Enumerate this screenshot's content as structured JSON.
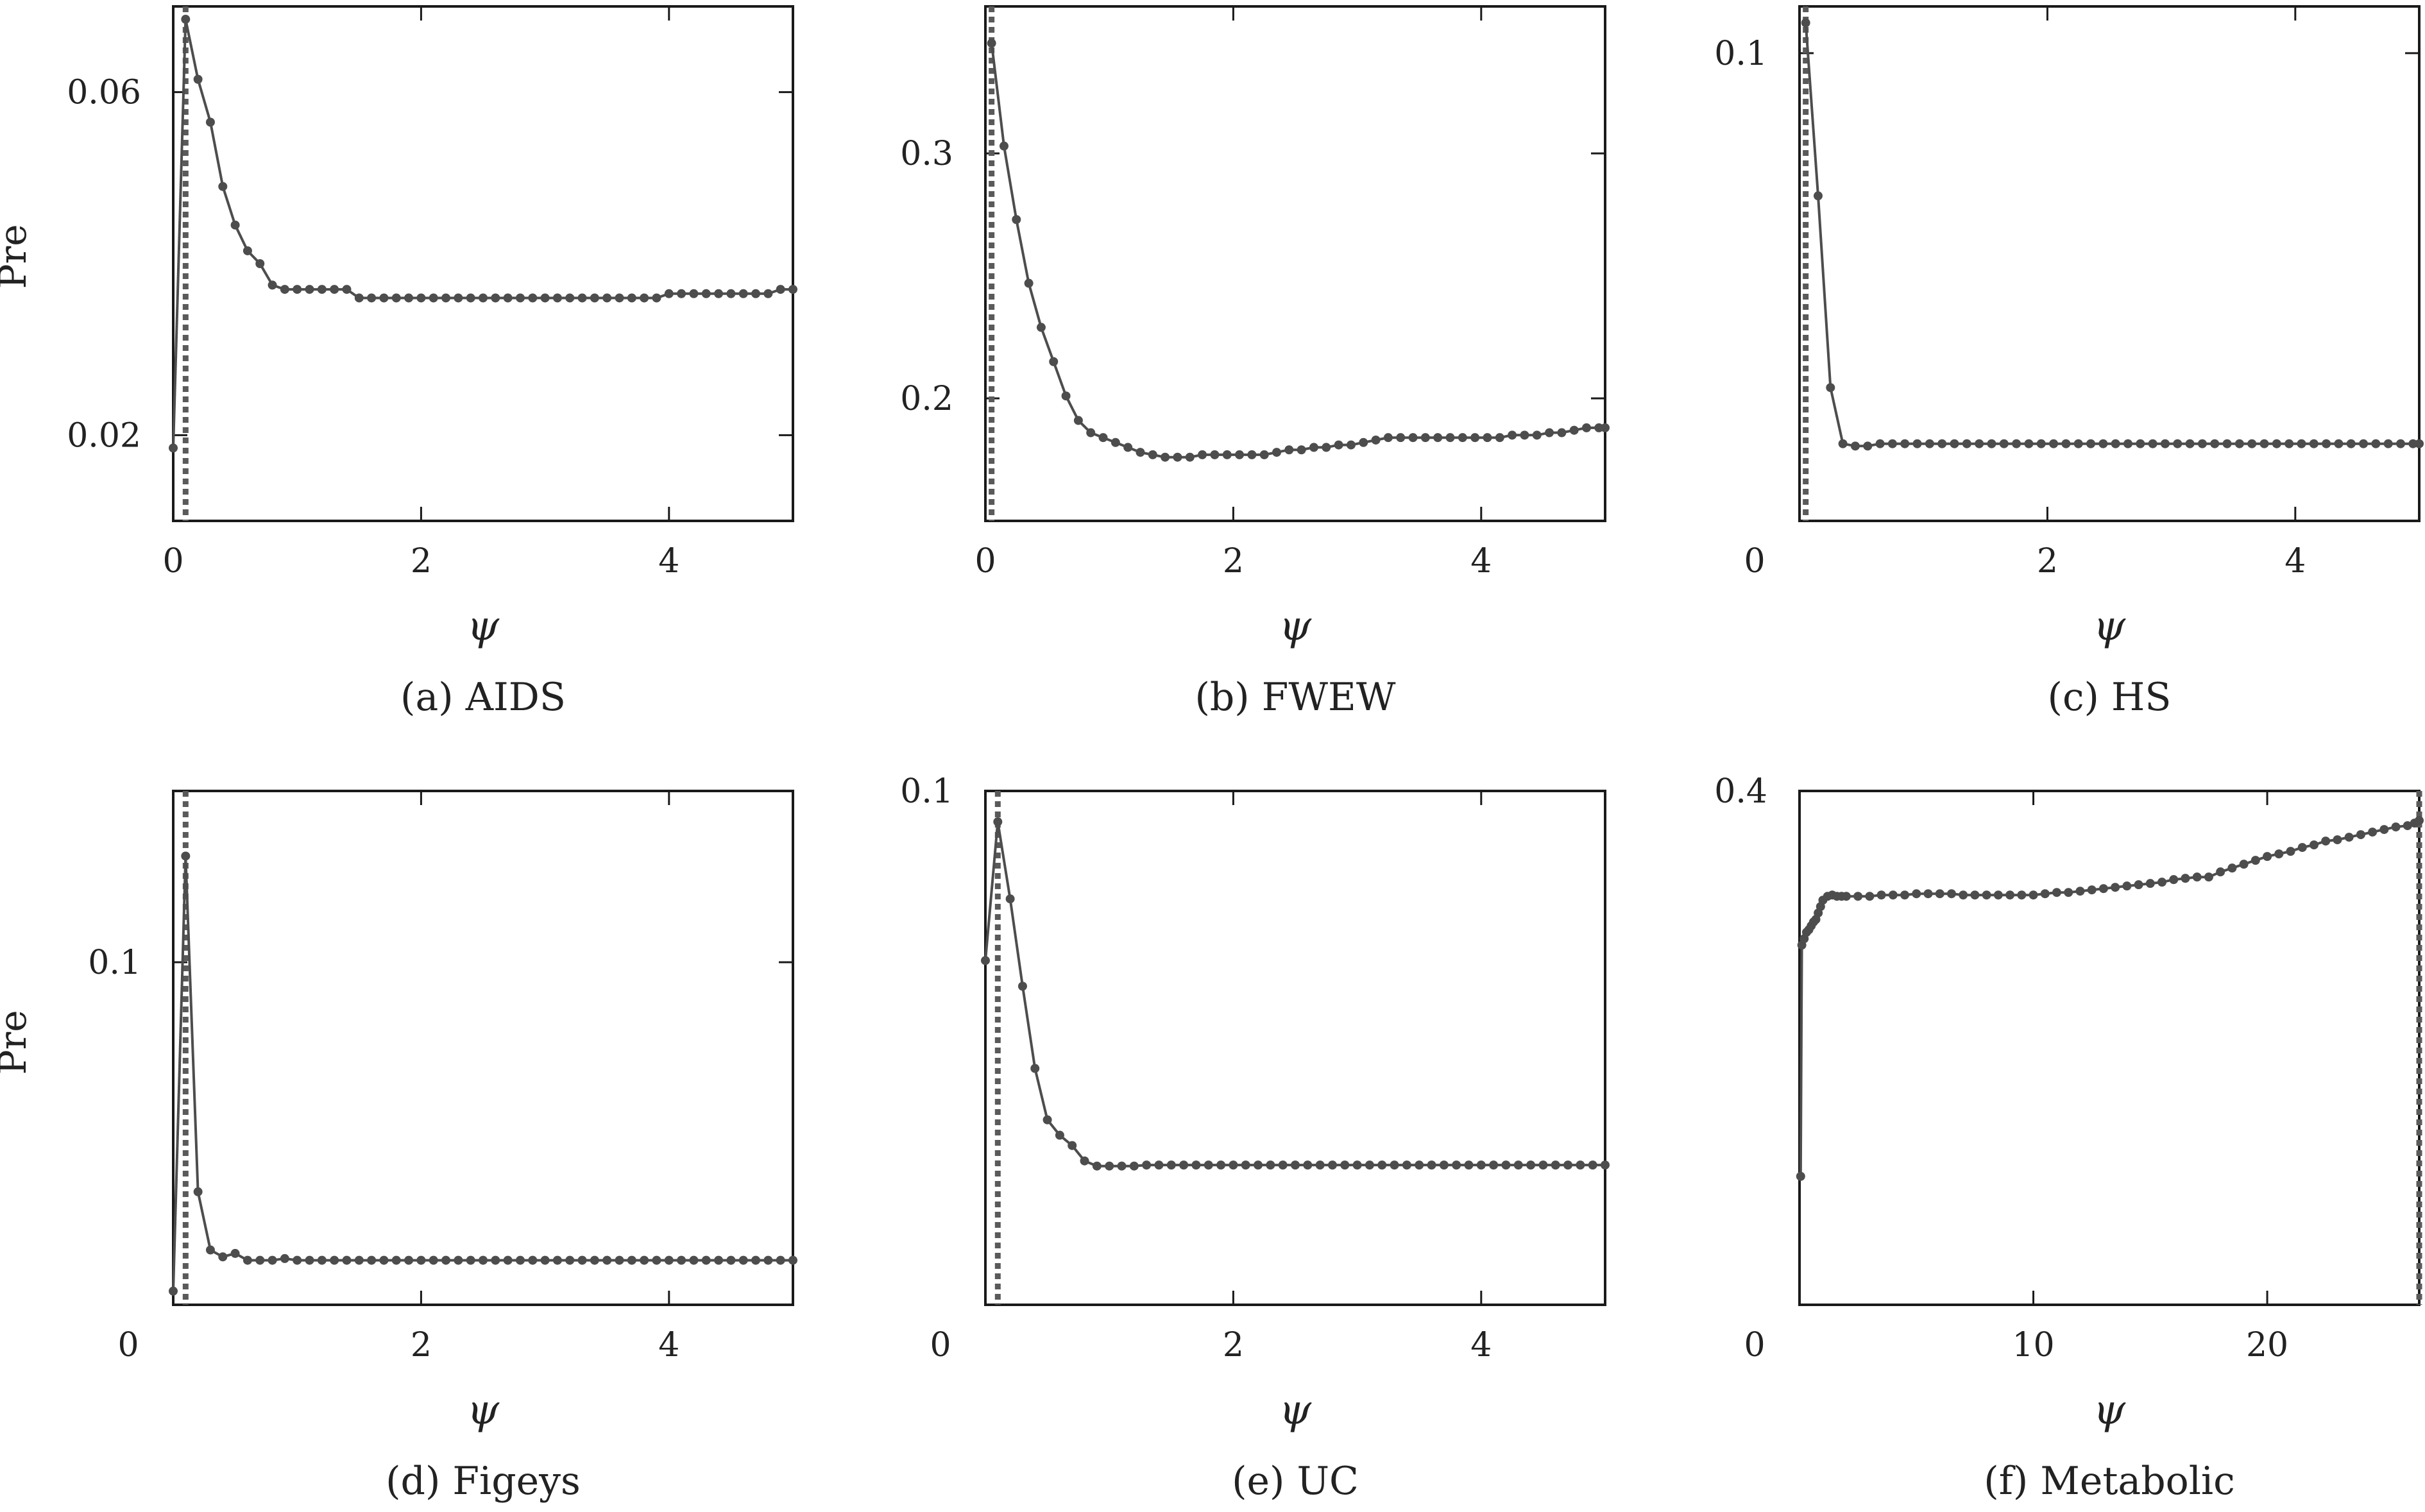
{
  "style": {
    "line_color": "#4d4d4d",
    "marker_color": "#4d4d4d",
    "dotted_line_color": "#5a5a5a",
    "frame_color": "#1a1a1a"
  },
  "chart_data": [
    {
      "type": "line",
      "caption": "(a) AIDS",
      "xlabel": "ψ",
      "ylabel": "Pre",
      "xlim": [
        0,
        5
      ],
      "ylim": [
        0.01,
        0.07
      ],
      "xticks": [
        0,
        2,
        4
      ],
      "xtick_labels": [
        "0",
        "2",
        "4"
      ],
      "yticks": [
        0.02,
        0.06
      ],
      "ytick_labels": [
        "0.02",
        "0.06"
      ],
      "vline_x": 0.1,
      "series": [
        {
          "x": [
            0,
            0.1,
            0.2,
            0.3,
            0.4,
            0.5,
            0.6,
            0.7,
            0.8,
            0.9,
            1.0,
            1.1,
            1.2,
            1.3,
            1.4,
            1.5,
            1.6,
            1.7,
            1.8,
            1.9,
            2.0,
            2.1,
            2.2,
            2.3,
            2.4,
            2.5,
            2.6,
            2.7,
            2.8,
            2.9,
            3.0,
            3.1,
            3.2,
            3.3,
            3.4,
            3.5,
            3.6,
            3.7,
            3.8,
            3.9,
            4.0,
            4.1,
            4.2,
            4.3,
            4.4,
            4.5,
            4.6,
            4.7,
            4.8,
            4.9,
            5.0
          ],
          "y": [
            0.0185,
            0.0685,
            0.0615,
            0.0565,
            0.049,
            0.0445,
            0.0415,
            0.04,
            0.0375,
            0.037,
            0.037,
            0.037,
            0.037,
            0.037,
            0.037,
            0.036,
            0.036,
            0.036,
            0.036,
            0.036,
            0.036,
            0.036,
            0.036,
            0.036,
            0.036,
            0.036,
            0.036,
            0.036,
            0.036,
            0.036,
            0.036,
            0.036,
            0.036,
            0.036,
            0.036,
            0.036,
            0.036,
            0.036,
            0.036,
            0.036,
            0.0365,
            0.0365,
            0.0365,
            0.0365,
            0.0365,
            0.0365,
            0.0365,
            0.0365,
            0.0365,
            0.037,
            0.037
          ]
        }
      ]
    },
    {
      "type": "line",
      "caption": "(b) FWEW",
      "xlabel": "ψ",
      "ylabel": "",
      "xlim": [
        0,
        5
      ],
      "ylim": [
        0.15,
        0.36
      ],
      "xticks": [
        0,
        2,
        4
      ],
      "xtick_labels": [
        "0",
        "2",
        "4"
      ],
      "yticks": [
        0.2,
        0.3
      ],
      "ytick_labels": [
        "0.2",
        "0.3"
      ],
      "vline_x": 0.05,
      "series": [
        {
          "x": [
            0.05,
            0.15,
            0.25,
            0.35,
            0.45,
            0.55,
            0.65,
            0.75,
            0.85,
            0.95,
            1.05,
            1.15,
            1.25,
            1.35,
            1.45,
            1.55,
            1.65,
            1.75,
            1.85,
            1.95,
            2.05,
            2.15,
            2.25,
            2.35,
            2.45,
            2.55,
            2.65,
            2.75,
            2.85,
            2.95,
            3.05,
            3.15,
            3.25,
            3.35,
            3.45,
            3.55,
            3.65,
            3.75,
            3.85,
            3.95,
            4.05,
            4.15,
            4.25,
            4.35,
            4.45,
            4.55,
            4.65,
            4.75,
            4.85,
            4.95,
            5.0
          ],
          "y": [
            0.345,
            0.303,
            0.273,
            0.247,
            0.229,
            0.215,
            0.201,
            0.191,
            0.186,
            0.184,
            0.182,
            0.18,
            0.178,
            0.177,
            0.176,
            0.176,
            0.176,
            0.177,
            0.177,
            0.177,
            0.177,
            0.177,
            0.177,
            0.178,
            0.179,
            0.179,
            0.18,
            0.18,
            0.181,
            0.181,
            0.182,
            0.183,
            0.184,
            0.184,
            0.184,
            0.184,
            0.184,
            0.184,
            0.184,
            0.184,
            0.184,
            0.184,
            0.185,
            0.185,
            0.185,
            0.186,
            0.186,
            0.187,
            0.188,
            0.188,
            0.188
          ]
        }
      ]
    },
    {
      "type": "line",
      "caption": "(c) HS",
      "xlabel": "ψ",
      "ylabel": "",
      "xlim": [
        0,
        5
      ],
      "ylim": [
        0,
        0.11
      ],
      "xticks": [
        2,
        4
      ],
      "xtick_labels": [
        "2",
        "4"
      ],
      "yticks": [
        0.1
      ],
      "ytick_labels": [
        "0.1"
      ],
      "origin_label": "0",
      "vline_x": 0.05,
      "series": [
        {
          "x": [
            0.05,
            0.15,
            0.25,
            0.35,
            0.45,
            0.55,
            0.65,
            0.75,
            0.85,
            0.95,
            1.05,
            1.15,
            1.25,
            1.35,
            1.45,
            1.55,
            1.65,
            1.75,
            1.85,
            1.95,
            2.05,
            2.15,
            2.25,
            2.35,
            2.45,
            2.55,
            2.65,
            2.75,
            2.85,
            2.95,
            3.05,
            3.15,
            3.25,
            3.35,
            3.45,
            3.55,
            3.65,
            3.75,
            3.85,
            3.95,
            4.05,
            4.15,
            4.25,
            4.35,
            4.45,
            4.55,
            4.65,
            4.75,
            4.85,
            4.95,
            5.0
          ],
          "y": [
            0.1065,
            0.0695,
            0.0285,
            0.0165,
            0.016,
            0.016,
            0.0165,
            0.0165,
            0.0165,
            0.0165,
            0.0165,
            0.0165,
            0.0165,
            0.0165,
            0.0165,
            0.0165,
            0.0165,
            0.0165,
            0.0165,
            0.0165,
            0.0165,
            0.0165,
            0.0165,
            0.0165,
            0.0165,
            0.0165,
            0.0165,
            0.0165,
            0.0165,
            0.0165,
            0.0165,
            0.0165,
            0.0165,
            0.0165,
            0.0165,
            0.0165,
            0.0165,
            0.0165,
            0.0165,
            0.0165,
            0.0165,
            0.0165,
            0.0165,
            0.0165,
            0.0165,
            0.0165,
            0.0165,
            0.0165,
            0.0165,
            0.0165,
            0.0165
          ]
        }
      ]
    },
    {
      "type": "line",
      "caption": "(d) Figeys",
      "xlabel": "ψ",
      "ylabel": "Pre",
      "xlim": [
        0,
        5
      ],
      "ylim": [
        0,
        0.15
      ],
      "xticks": [
        2,
        4
      ],
      "xtick_labels": [
        "2",
        "4"
      ],
      "yticks": [
        0.1
      ],
      "ytick_labels": [
        "0.1"
      ],
      "origin_label": "0",
      "vline_x": 0.1,
      "series": [
        {
          "x": [
            0,
            0.1,
            0.2,
            0.3,
            0.4,
            0.5,
            0.6,
            0.7,
            0.8,
            0.9,
            1.0,
            1.1,
            1.2,
            1.3,
            1.4,
            1.5,
            1.6,
            1.7,
            1.8,
            1.9,
            2.0,
            2.1,
            2.2,
            2.3,
            2.4,
            2.5,
            2.6,
            2.7,
            2.8,
            2.9,
            3.0,
            3.1,
            3.2,
            3.3,
            3.4,
            3.5,
            3.6,
            3.7,
            3.8,
            3.9,
            4.0,
            4.1,
            4.2,
            4.3,
            4.4,
            4.5,
            4.6,
            4.7,
            4.8,
            4.9,
            5.0
          ],
          "y": [
            0.004,
            0.131,
            0.033,
            0.016,
            0.014,
            0.015,
            0.013,
            0.013,
            0.013,
            0.0135,
            0.013,
            0.013,
            0.013,
            0.013,
            0.013,
            0.013,
            0.013,
            0.013,
            0.013,
            0.013,
            0.013,
            0.013,
            0.013,
            0.013,
            0.013,
            0.013,
            0.013,
            0.013,
            0.013,
            0.013,
            0.013,
            0.013,
            0.013,
            0.013,
            0.013,
            0.013,
            0.013,
            0.013,
            0.013,
            0.013,
            0.013,
            0.013,
            0.013,
            0.013,
            0.013,
            0.013,
            0.013,
            0.013,
            0.013,
            0.013,
            0.013
          ]
        }
      ]
    },
    {
      "type": "line",
      "caption": "(e) UC",
      "xlabel": "ψ",
      "ylabel": "",
      "xlim": [
        0,
        5
      ],
      "ylim": [
        0,
        0.1
      ],
      "xticks": [
        2,
        4
      ],
      "xtick_labels": [
        "2",
        "4"
      ],
      "yticks": [
        0.1
      ],
      "ytick_labels": [
        "0.1"
      ],
      "origin_label": "0",
      "vline_x": 0.1,
      "series": [
        {
          "x": [
            0,
            0.1,
            0.2,
            0.3,
            0.4,
            0.5,
            0.6,
            0.7,
            0.8,
            0.9,
            1.0,
            1.1,
            1.2,
            1.3,
            1.4,
            1.5,
            1.6,
            1.7,
            1.8,
            1.9,
            2.0,
            2.1,
            2.2,
            2.3,
            2.4,
            2.5,
            2.6,
            2.7,
            2.8,
            2.9,
            3.0,
            3.1,
            3.2,
            3.3,
            3.4,
            3.5,
            3.6,
            3.7,
            3.8,
            3.9,
            4.0,
            4.1,
            4.2,
            4.3,
            4.4,
            4.5,
            4.6,
            4.7,
            4.8,
            4.9,
            5.0
          ],
          "y": [
            0.067,
            0.094,
            0.079,
            0.062,
            0.046,
            0.036,
            0.033,
            0.031,
            0.028,
            0.027,
            0.027,
            0.027,
            0.027,
            0.0272,
            0.0272,
            0.0272,
            0.0272,
            0.0272,
            0.0272,
            0.0272,
            0.0272,
            0.0272,
            0.0272,
            0.0272,
            0.0272,
            0.0272,
            0.0272,
            0.0272,
            0.0272,
            0.0272,
            0.0272,
            0.0272,
            0.0272,
            0.0272,
            0.0272,
            0.0272,
            0.0272,
            0.0272,
            0.0272,
            0.0272,
            0.0272,
            0.0272,
            0.0272,
            0.0272,
            0.0272,
            0.0272,
            0.0272,
            0.0272,
            0.0272,
            0.0272,
            0.0272
          ]
        }
      ]
    },
    {
      "type": "line",
      "caption": "(f) Metabolic",
      "xlabel": "ψ",
      "ylabel": "",
      "xlim": [
        0,
        26.5
      ],
      "ylim": [
        0,
        0.4
      ],
      "xticks": [
        10,
        20
      ],
      "xtick_labels": [
        "10",
        "20"
      ],
      "yticks": [
        0.4
      ],
      "ytick_labels": [
        "0.4"
      ],
      "origin_label": "0",
      "vline_x": 26.5,
      "series": [
        {
          "x": [
            0.05,
            0.1,
            0.2,
            0.3,
            0.4,
            0.5,
            0.6,
            0.7,
            0.8,
            0.9,
            1.0,
            1.2,
            1.4,
            1.6,
            1.8,
            2.0,
            2.5,
            3.0,
            3.5,
            4.0,
            4.5,
            5.0,
            5.5,
            6.0,
            6.5,
            7.0,
            7.5,
            8.0,
            8.5,
            9.0,
            9.5,
            10.0,
            10.5,
            11.0,
            11.5,
            12.0,
            12.5,
            13.0,
            13.5,
            14.0,
            14.5,
            15.0,
            15.5,
            16.0,
            16.5,
            17.0,
            17.5,
            18.0,
            18.5,
            19.0,
            19.5,
            20.0,
            20.5,
            21.0,
            21.5,
            22.0,
            22.5,
            23.0,
            23.5,
            24.0,
            24.5,
            25.0,
            25.5,
            26.0,
            26.3,
            26.5
          ],
          "y": [
            0.1,
            0.28,
            0.285,
            0.29,
            0.292,
            0.295,
            0.298,
            0.3,
            0.305,
            0.31,
            0.315,
            0.318,
            0.319,
            0.318,
            0.318,
            0.318,
            0.318,
            0.318,
            0.319,
            0.319,
            0.319,
            0.32,
            0.32,
            0.32,
            0.32,
            0.319,
            0.319,
            0.319,
            0.319,
            0.319,
            0.319,
            0.319,
            0.32,
            0.321,
            0.321,
            0.322,
            0.323,
            0.324,
            0.325,
            0.326,
            0.327,
            0.328,
            0.329,
            0.331,
            0.332,
            0.333,
            0.333,
            0.337,
            0.34,
            0.343,
            0.346,
            0.349,
            0.351,
            0.353,
            0.356,
            0.358,
            0.361,
            0.362,
            0.364,
            0.366,
            0.368,
            0.37,
            0.372,
            0.373,
            0.375,
            0.377
          ]
        }
      ]
    }
  ]
}
